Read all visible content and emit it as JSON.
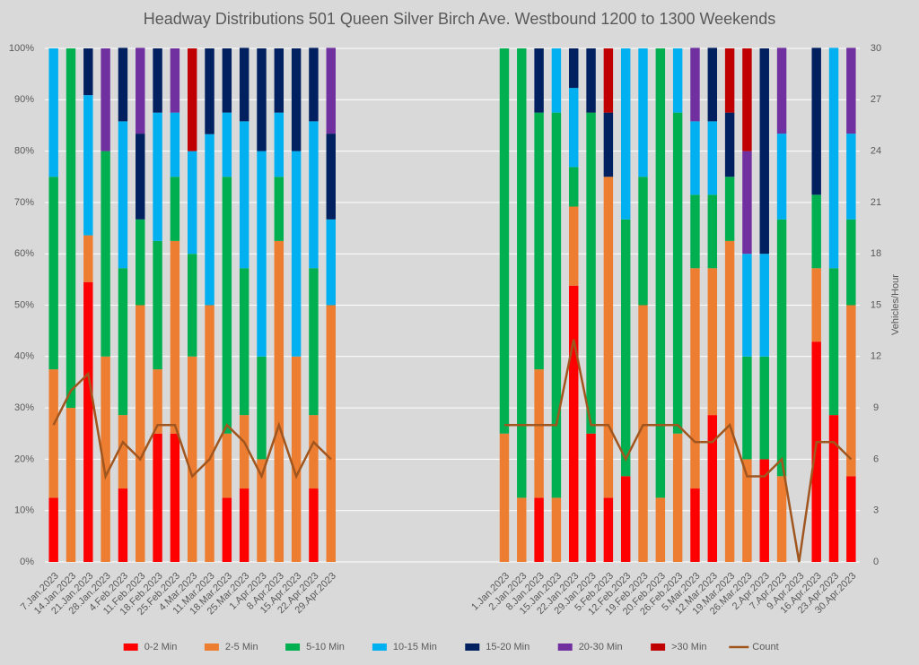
{
  "chart_data": {
    "type": "stacked-bar-line",
    "title": "Headway Distributions 501 Queen  Silver Birch Ave. Westbound 1200 to 1300 Weekends",
    "y2label": "Vehicles/Hour",
    "categories": [
      "7.Jan.2023",
      "14.Jan.2023",
      "21.Jan.2023",
      "28.Jan.2023",
      "4.Feb.2023",
      "11.Feb.2023",
      "18.Feb.2023",
      "25.Feb.2023",
      "4.Mar.2023",
      "11.Mar.2023",
      "18.Mar.2023",
      "25.Mar.2023",
      "1.Apr.2023",
      "8.Apr.2023",
      "15.Apr.2023",
      "22.Apr.2023",
      "29.Apr.2023",
      null,
      null,
      null,
      null,
      null,
      null,
      null,
      null,
      null,
      "1.Jan.2023",
      "2.Jan.2023",
      "8.Jan.2023",
      "15.Jan.2023",
      "22.Jan.2023",
      "29.Jan.2023",
      "5.Feb.2023",
      "12.Feb.2023",
      "19.Feb.2023",
      "20.Feb.2023",
      "26.Feb.2023",
      "5.Mar.2023",
      "12.Mar.2023",
      "19.Mar.2023",
      "26.Mar.2023",
      "2.Apr.2023",
      "7.Apr.2023",
      "9.Apr.2023",
      "16.Apr.2023",
      "23.Apr.2023",
      "30.Apr.2023"
    ],
    "series": [
      {
        "name": "0-2 Min",
        "color": "#ff0000",
        "values": [
          12.5,
          0,
          54.5,
          0,
          14.3,
          0,
          25,
          25,
          0,
          0,
          12.5,
          14.3,
          0,
          0,
          0,
          14.3,
          0,
          null,
          null,
          null,
          null,
          null,
          null,
          null,
          null,
          null,
          0,
          0,
          12.5,
          0,
          53.8,
          25,
          12.5,
          16.7,
          0,
          0,
          0,
          14.3,
          28.6,
          0,
          0,
          20,
          0,
          0,
          42.9,
          28.6,
          16.7
        ]
      },
      {
        "name": "2-5 Min",
        "color": "#ed7d31",
        "values": [
          25,
          30,
          9.1,
          40,
          14.3,
          50,
          12.5,
          37.5,
          40,
          50,
          12.5,
          14.3,
          20,
          62.5,
          40,
          14.3,
          50,
          null,
          null,
          null,
          null,
          null,
          null,
          null,
          null,
          null,
          25,
          12.5,
          25,
          12.5,
          15.4,
          0,
          62.5,
          0,
          50,
          12.5,
          25,
          42.9,
          28.6,
          62.5,
          20,
          0,
          16.7,
          0,
          14.3,
          0,
          33.3
        ]
      },
      {
        "name": "5-10 Min",
        "color": "#00b050",
        "values": [
          37.5,
          70,
          0,
          40,
          28.6,
          16.7,
          25,
          12.5,
          20,
          0,
          50,
          28.6,
          20,
          12.5,
          0,
          28.6,
          0,
          null,
          null,
          null,
          null,
          null,
          null,
          null,
          null,
          null,
          75,
          87.5,
          50,
          75,
          7.7,
          62.5,
          0,
          50,
          25,
          87.5,
          62.5,
          14.3,
          14.3,
          12.5,
          20,
          20,
          50,
          0,
          14.3,
          28.6,
          16.7
        ]
      },
      {
        "name": "10-15 Min",
        "color": "#00b0f0",
        "values": [
          25,
          0,
          27.3,
          0,
          28.6,
          0,
          25,
          12.5,
          20,
          33.3,
          12.5,
          28.6,
          40,
          12.5,
          40,
          28.6,
          16.7,
          null,
          null,
          null,
          null,
          null,
          null,
          null,
          null,
          null,
          0,
          0,
          0,
          12.5,
          15.4,
          0,
          0,
          33.3,
          25,
          0,
          12.5,
          14.3,
          14.3,
          0,
          20,
          20,
          16.7,
          0,
          0,
          42.9,
          16.7
        ]
      },
      {
        "name": "15-20 Min",
        "color": "#002060",
        "values": [
          0,
          0,
          9.1,
          0,
          14.3,
          16.7,
          12.5,
          0,
          0,
          16.7,
          12.5,
          14.3,
          20,
          12.5,
          20,
          14.3,
          16.7,
          null,
          null,
          null,
          null,
          null,
          null,
          null,
          null,
          null,
          0,
          0,
          12.5,
          0,
          7.7,
          12.5,
          12.5,
          0,
          0,
          0,
          0,
          0,
          14.3,
          12.5,
          0,
          40,
          0,
          0,
          28.6,
          0,
          0
        ]
      },
      {
        "name": "20-30 Min",
        "color": "#7030a0",
        "values": [
          0,
          0,
          0,
          20,
          0,
          16.7,
          0,
          12.5,
          0,
          0,
          0,
          0,
          0,
          0,
          0,
          0,
          16.7,
          null,
          null,
          null,
          null,
          null,
          null,
          null,
          null,
          null,
          0,
          0,
          0,
          0,
          0,
          0,
          0,
          0,
          0,
          0,
          0,
          14.3,
          0,
          0,
          20,
          0,
          16.7,
          0,
          0,
          0,
          16.7
        ]
      },
      {
        "name": ">30 Min",
        "color": "#c00000",
        "values": [
          0,
          0,
          0,
          0,
          0,
          0,
          0,
          0,
          20,
          0,
          0,
          0,
          0,
          0,
          0,
          0,
          0,
          null,
          null,
          null,
          null,
          null,
          null,
          null,
          null,
          null,
          0,
          0,
          0,
          0,
          0,
          0,
          12.5,
          0,
          0,
          0,
          0,
          0,
          0,
          12.5,
          20,
          0,
          0,
          0,
          0,
          0,
          0
        ]
      },
      {
        "name": "Count",
        "color": "#a0561e",
        "axis": "y2",
        "values": [
          8,
          10,
          11,
          5,
          7,
          6,
          8,
          8,
          5,
          6,
          8,
          7,
          5,
          8,
          5,
          7,
          6,
          null,
          null,
          null,
          null,
          null,
          null,
          null,
          null,
          null,
          8,
          8,
          8,
          8,
          13,
          8,
          8,
          6,
          8,
          8,
          8,
          7,
          7,
          8,
          5,
          5,
          6,
          0,
          7,
          7,
          6
        ]
      }
    ],
    "ylim": [
      0,
      100
    ],
    "yticks": [
      {
        "value": 0,
        "label": "0%"
      },
      {
        "value": 10,
        "label": "10%"
      },
      {
        "value": 20,
        "label": "20%"
      },
      {
        "value": 30,
        "label": "30%"
      },
      {
        "value": 40,
        "label": "40%"
      },
      {
        "value": 50,
        "label": "50%"
      },
      {
        "value": 60,
        "label": "60%"
      },
      {
        "value": 70,
        "label": "70%"
      },
      {
        "value": 80,
        "label": "80%"
      },
      {
        "value": 90,
        "label": "90%"
      },
      {
        "value": 100,
        "label": "100%"
      }
    ],
    "y2lim": [
      0,
      30
    ],
    "y2ticks": [
      0,
      3,
      6,
      9,
      12,
      15,
      18,
      21,
      24,
      27,
      30
    ],
    "grid": true,
    "legend": "bottom"
  }
}
